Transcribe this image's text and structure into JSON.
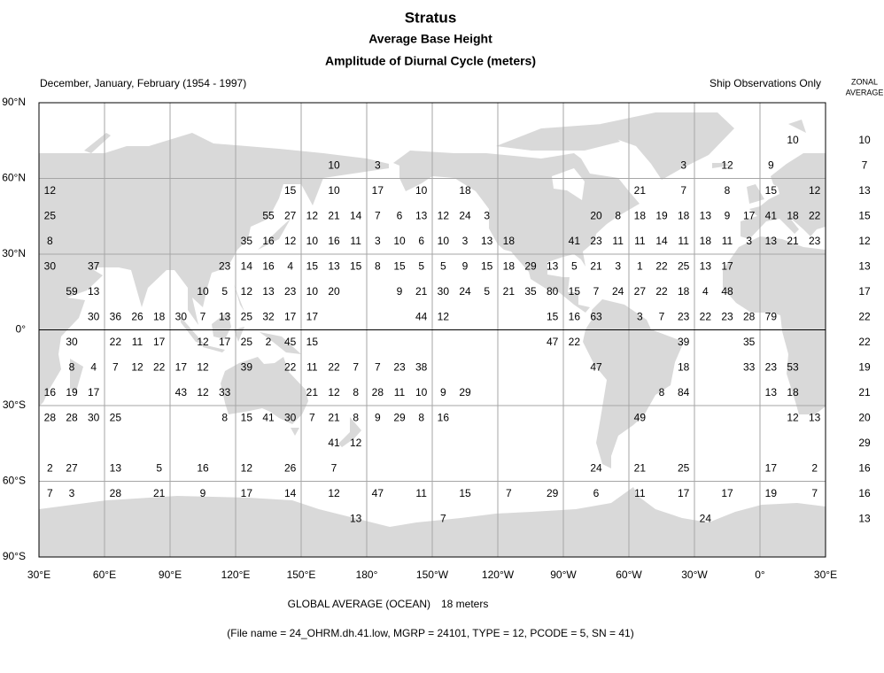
{
  "header": {
    "title": "Stratus",
    "subtitle": "Average Base Height",
    "caption": "Amplitude of Diurnal Cycle (meters)",
    "season": "December, January, February (1954 - 1997)",
    "source": "Ship Observations Only",
    "zonal_heading": [
      "ZONAL",
      "AVERAGE"
    ]
  },
  "map": {
    "lat_labels": [
      "90°N",
      "60°N",
      "30°N",
      "0°",
      "30°S",
      "60°S",
      "90°S"
    ],
    "lon_labels": [
      "30°E",
      "60°E",
      "90°E",
      "120°E",
      "150°E",
      "180°",
      "150°W",
      "120°W",
      "90°W",
      "60°W",
      "30°W",
      "0°",
      "30°E"
    ],
    "rows": [
      {
        "cells": [
          null,
          null,
          null,
          null,
          null,
          null,
          null,
          null,
          null,
          null,
          null,
          null,
          null,
          null,
          null,
          null,
          null,
          null,
          null,
          null,
          null,
          null,
          null,
          null,
          null,
          null,
          null,
          null,
          null,
          null,
          null,
          null,
          null,
          null,
          10,
          null
        ],
        "zonal_average": 10
      },
      {
        "cells": [
          null,
          null,
          null,
          null,
          null,
          null,
          null,
          null,
          null,
          null,
          null,
          null,
          null,
          10,
          null,
          3,
          null,
          null,
          null,
          null,
          null,
          null,
          null,
          null,
          null,
          null,
          null,
          null,
          null,
          3,
          null,
          12,
          null,
          9,
          null,
          null
        ],
        "zonal_average": 7
      },
      {
        "cells": [
          12,
          null,
          null,
          null,
          null,
          null,
          null,
          null,
          null,
          null,
          null,
          15,
          null,
          10,
          null,
          17,
          null,
          10,
          null,
          18,
          null,
          null,
          null,
          null,
          null,
          null,
          null,
          21,
          null,
          7,
          null,
          8,
          null,
          15,
          null,
          12
        ],
        "zonal_average": 13
      },
      {
        "cells": [
          25,
          null,
          null,
          null,
          null,
          null,
          null,
          null,
          null,
          null,
          55,
          27,
          12,
          21,
          14,
          7,
          6,
          13,
          12,
          24,
          3,
          null,
          null,
          null,
          null,
          20,
          8,
          18,
          19,
          18,
          13,
          9,
          17,
          41,
          18,
          22
        ],
        "zonal_average": 15
      },
      {
        "cells": [
          8,
          null,
          null,
          null,
          null,
          null,
          null,
          null,
          null,
          35,
          16,
          12,
          10,
          16,
          11,
          3,
          10,
          6,
          10,
          3,
          13,
          18,
          null,
          null,
          41,
          23,
          11,
          11,
          14,
          11,
          18,
          11,
          3,
          13,
          21,
          23
        ],
        "zonal_average": 12
      },
      {
        "cells": [
          30,
          null,
          37,
          null,
          null,
          null,
          null,
          null,
          23,
          14,
          16,
          4,
          15,
          13,
          15,
          8,
          15,
          5,
          5,
          9,
          15,
          18,
          29,
          13,
          5,
          21,
          3,
          1,
          22,
          25,
          13,
          17,
          null,
          null,
          null,
          null
        ],
        "zonal_average": 13
      },
      {
        "cells": [
          null,
          59,
          13,
          null,
          null,
          null,
          null,
          10,
          5,
          12,
          13,
          23,
          10,
          20,
          null,
          null,
          9,
          21,
          30,
          24,
          5,
          21,
          35,
          80,
          15,
          7,
          24,
          27,
          22,
          18,
          4,
          48,
          null,
          null,
          null,
          null
        ],
        "zonal_average": 17
      },
      {
        "cells": [
          null,
          null,
          30,
          36,
          26,
          18,
          30,
          7,
          13,
          25,
          32,
          17,
          17,
          null,
          null,
          null,
          null,
          44,
          12,
          null,
          null,
          null,
          null,
          15,
          16,
          63,
          null,
          3,
          7,
          23,
          22,
          23,
          28,
          79,
          null,
          null
        ],
        "zonal_average": 22
      },
      {
        "cells": [
          null,
          30,
          null,
          22,
          11,
          17,
          null,
          12,
          17,
          25,
          2,
          45,
          15,
          null,
          null,
          null,
          null,
          null,
          null,
          null,
          null,
          null,
          null,
          47,
          22,
          null,
          null,
          null,
          null,
          39,
          null,
          null,
          35,
          null,
          null,
          null
        ],
        "zonal_average": 22
      },
      {
        "cells": [
          null,
          8,
          4,
          7,
          12,
          22,
          17,
          12,
          null,
          39,
          null,
          22,
          11,
          22,
          7,
          7,
          23,
          38,
          null,
          null,
          null,
          null,
          null,
          null,
          null,
          47,
          null,
          null,
          null,
          18,
          null,
          null,
          33,
          23,
          53,
          null
        ],
        "zonal_average": 19
      },
      {
        "cells": [
          16,
          19,
          17,
          null,
          null,
          null,
          43,
          12,
          33,
          null,
          null,
          null,
          21,
          12,
          8,
          28,
          11,
          10,
          9,
          29,
          null,
          null,
          null,
          null,
          null,
          null,
          null,
          null,
          8,
          84,
          null,
          null,
          null,
          13,
          18,
          null
        ],
        "zonal_average": 21
      },
      {
        "cells": [
          28,
          28,
          30,
          25,
          null,
          null,
          null,
          null,
          8,
          15,
          41,
          30,
          7,
          21,
          8,
          9,
          29,
          8,
          16,
          null,
          null,
          null,
          null,
          null,
          null,
          null,
          null,
          49,
          null,
          null,
          null,
          null,
          null,
          null,
          12,
          13
        ],
        "zonal_average": 20
      },
      {
        "cells": [
          null,
          null,
          null,
          null,
          null,
          null,
          null,
          null,
          null,
          null,
          null,
          null,
          null,
          41,
          12,
          null,
          null,
          null,
          null,
          null,
          null,
          null,
          null,
          null,
          null,
          null,
          null,
          null,
          null,
          null,
          null,
          null,
          null,
          null,
          null,
          null
        ],
        "zonal_average": 29
      },
      {
        "cells": [
          2,
          27,
          null,
          13,
          null,
          5,
          null,
          16,
          null,
          12,
          null,
          26,
          null,
          7,
          null,
          null,
          null,
          null,
          null,
          null,
          null,
          null,
          null,
          null,
          null,
          24,
          null,
          21,
          null,
          25,
          null,
          null,
          null,
          17,
          null,
          2
        ],
        "zonal_average": 16
      },
      {
        "cells": [
          7,
          3,
          null,
          28,
          null,
          21,
          null,
          9,
          null,
          17,
          null,
          14,
          null,
          12,
          null,
          47,
          null,
          11,
          null,
          15,
          null,
          7,
          null,
          29,
          null,
          6,
          null,
          11,
          null,
          17,
          null,
          17,
          null,
          19,
          null,
          7
        ],
        "zonal_average": 16
      },
      {
        "cells": [
          null,
          null,
          null,
          null,
          null,
          null,
          null,
          null,
          null,
          null,
          null,
          null,
          null,
          null,
          13,
          null,
          null,
          null,
          7,
          null,
          null,
          null,
          null,
          null,
          null,
          null,
          null,
          null,
          null,
          null,
          24,
          null,
          null,
          null,
          null,
          null
        ],
        "zonal_average": 13
      }
    ]
  },
  "footer": {
    "global_average_label": "GLOBAL AVERAGE (OCEAN)",
    "global_average": "18 meters",
    "file_info": "(File name = 24_OHRM.dh.41.low, MGRP = 24101, TYPE = 12, PCODE = 5, SN = 41)"
  }
}
